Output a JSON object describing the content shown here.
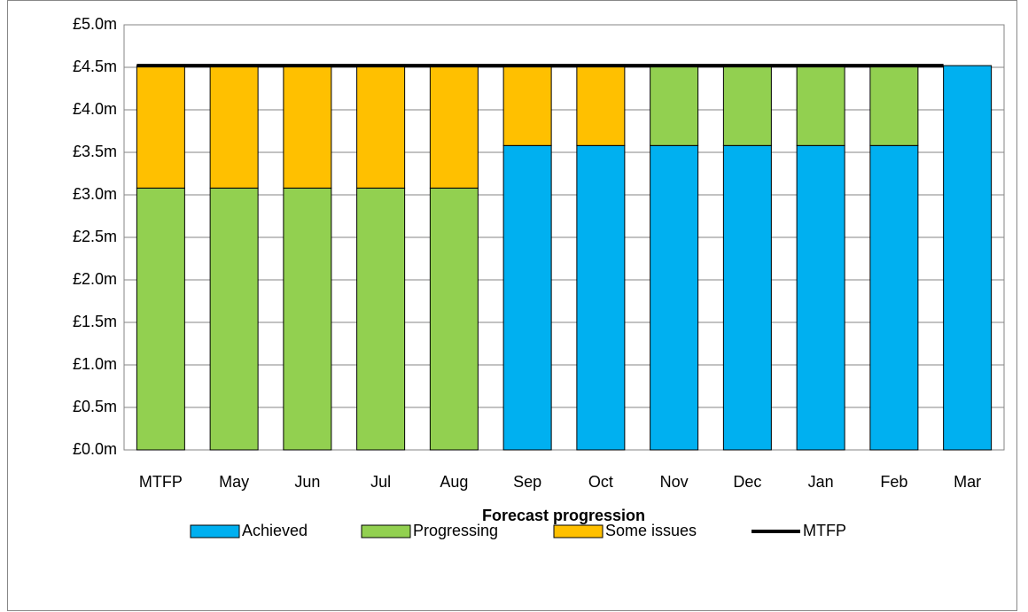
{
  "chart_data": {
    "type": "bar",
    "stacked": true,
    "x_label": "Forecast progression",
    "categories": [
      "MTFP",
      "May",
      "Jun",
      "Jul",
      "Aug",
      "Sep",
      "Oct",
      "Nov",
      "Dec",
      "Jan",
      "Feb",
      "Mar"
    ],
    "series": [
      {
        "name": "Achieved",
        "color": "#00b0f0",
        "values": [
          0,
          0,
          0,
          0,
          0,
          3.58,
          3.58,
          3.58,
          3.58,
          3.58,
          3.58,
          4.52
        ]
      },
      {
        "name": "Progressing",
        "color": "#92d050",
        "values": [
          3.08,
          3.08,
          3.08,
          3.08,
          3.08,
          0,
          0,
          0.94,
          0.94,
          0.94,
          0.94,
          0
        ]
      },
      {
        "name": "Some issues",
        "color": "#ffc000",
        "values": [
          1.44,
          1.44,
          1.44,
          1.44,
          1.44,
          0.94,
          0.94,
          0,
          0,
          0,
          0,
          0
        ]
      },
      {
        "name": "MTFP",
        "type": "line",
        "color": "#000000",
        "values": [
          4.52,
          4.52,
          4.52,
          4.52,
          4.52,
          4.52,
          4.52,
          4.52,
          4.52,
          4.52,
          4.52,
          4.52
        ]
      }
    ],
    "ylim": [
      0,
      5
    ],
    "yticks": [
      {
        "value": 0,
        "label": "£0.0m"
      },
      {
        "value": 0.5,
        "label": "£0.5m"
      },
      {
        "value": 1,
        "label": "£1.0m"
      },
      {
        "value": 1.5,
        "label": "£1.5m"
      },
      {
        "value": 2,
        "label": "£2.0m"
      },
      {
        "value": 2.5,
        "label": "£2.5m"
      },
      {
        "value": 3,
        "label": "£3.0m"
      },
      {
        "value": 3.5,
        "label": "£3.5m"
      },
      {
        "value": 4,
        "label": "£4.0m"
      },
      {
        "value": 4.5,
        "label": "£4.5m"
      },
      {
        "value": 5,
        "label": "£5.0m"
      }
    ],
    "grid": true,
    "legend": "bottom"
  }
}
